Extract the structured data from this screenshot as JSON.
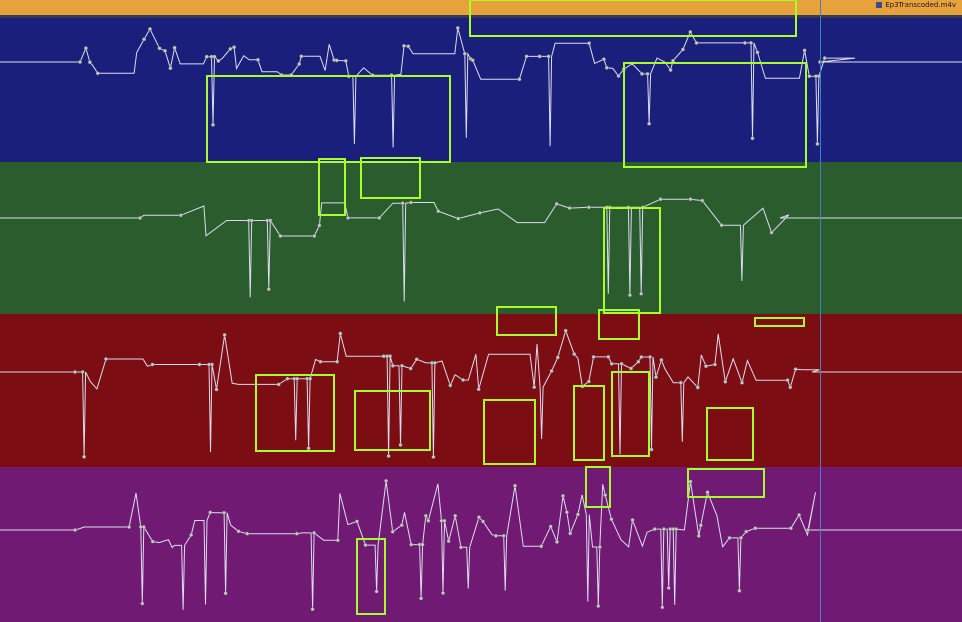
{
  "header": {
    "file_name": "Ep3Transcoded.m4v",
    "file_icon": "video-file-icon"
  },
  "colors": {
    "topbar": "#e8a23c",
    "lane_blue": "#1b1f7c",
    "lane_green": "#2a5c2e",
    "lane_red": "#7c0d12",
    "lane_purple": "#711a73",
    "curve": "#dcdcf0",
    "keyframe": "#c8c8c8",
    "selection": "#a6ff2b",
    "playhead": "#3f7fc8"
  },
  "lanes": [
    {
      "name": "lane-blue"
    },
    {
      "name": "lane-green"
    },
    {
      "name": "lane-red"
    },
    {
      "name": "lane-purple"
    }
  ]
}
